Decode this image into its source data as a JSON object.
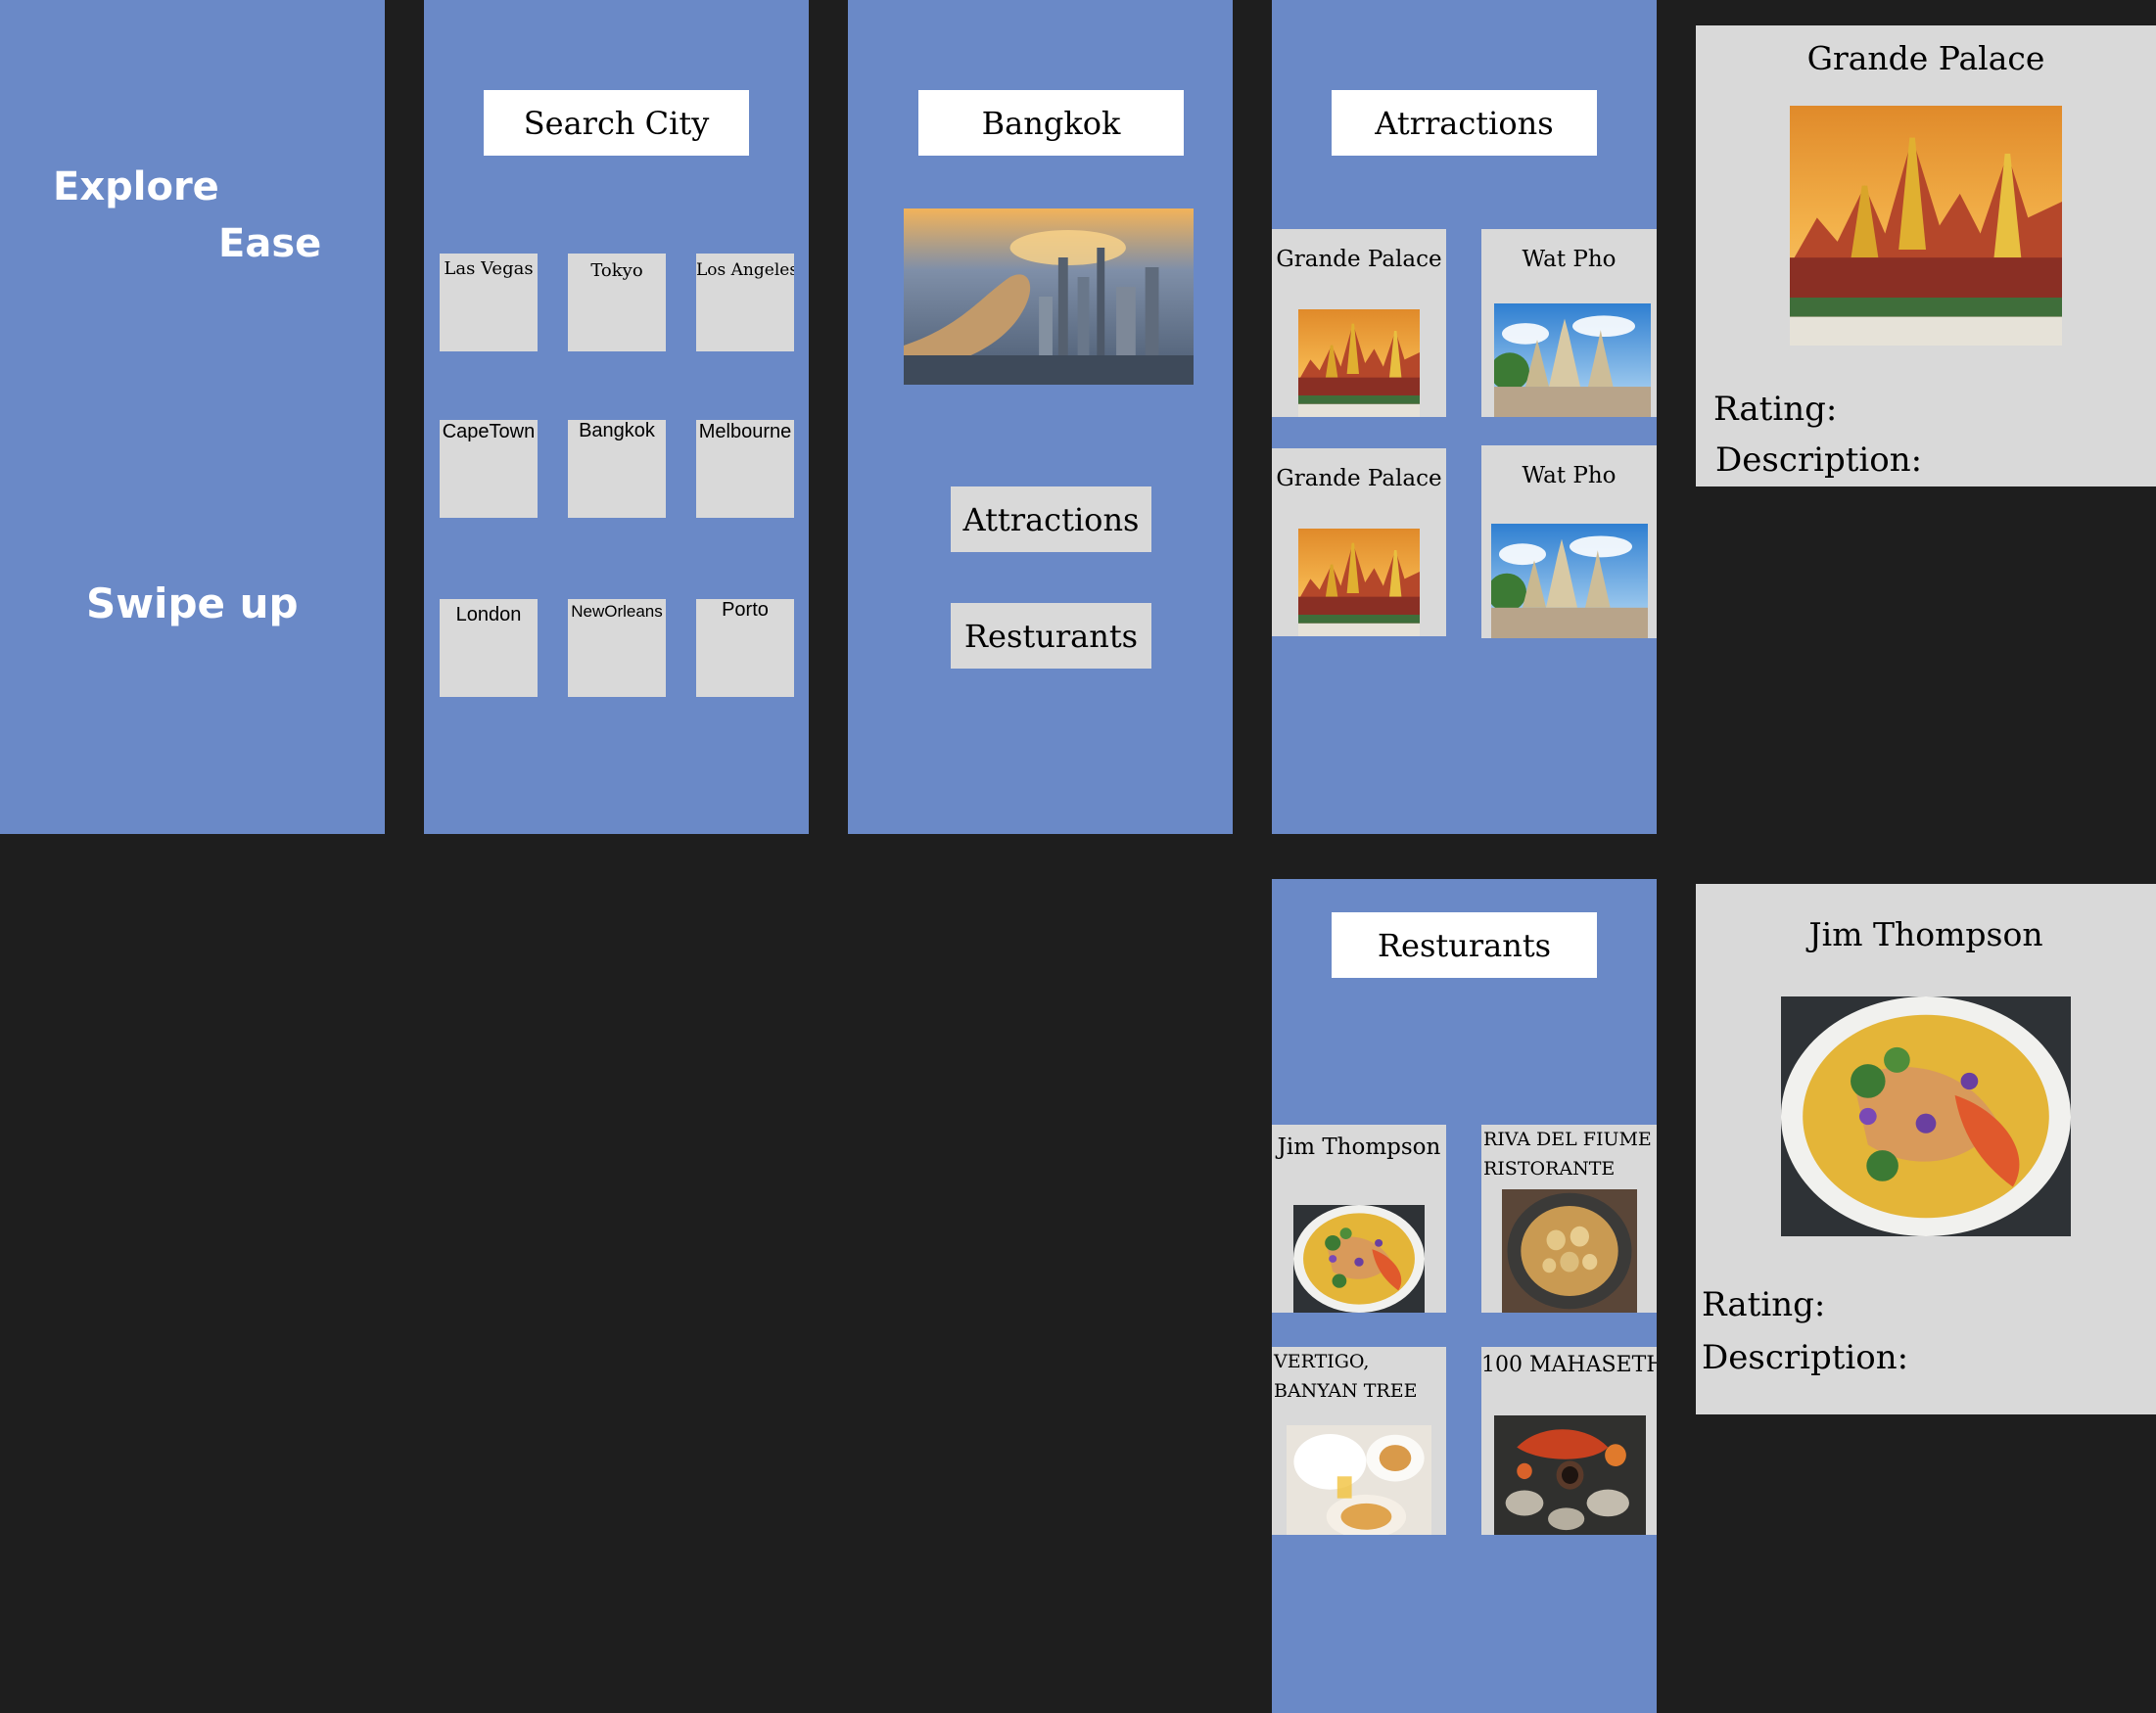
{
  "splash": {
    "word1": "Explore",
    "word2": "Ease",
    "swipe": "Swipe up"
  },
  "search": {
    "title": "Search City",
    "cities": [
      "Las Vegas",
      "Tokyo",
      "Los Angeles",
      "CapeTown",
      "Bangkok",
      "Melbourne",
      "London",
      "NewOrleans",
      "Porto"
    ]
  },
  "city": {
    "title": "Bangkok",
    "attractions_button": "Attractions",
    "restaurants_button": "Resturants"
  },
  "attractions": {
    "title": "Atrractions",
    "items": [
      "Grande Palace",
      "Wat Pho",
      "Grande Palace",
      "Wat Pho"
    ]
  },
  "restaurants": {
    "title": "Resturants",
    "items": [
      "Jim Thompson",
      "RIVA DEL FIUME RISTORANTE",
      "VERTIGO, BANYAN TREE",
      "100 MAHASETH"
    ]
  },
  "attraction_detail": {
    "title": "Grande Palace",
    "rating_label": "Rating:",
    "description_label": "Description:"
  },
  "restaurant_detail": {
    "title": "Jim Thompson",
    "rating_label": "Rating:",
    "description_label": "Description:"
  },
  "colors": {
    "screen_bg": "#6a89c7",
    "canvas_bg": "#1e1e1e",
    "tile_bg": "#d9d9d9"
  }
}
